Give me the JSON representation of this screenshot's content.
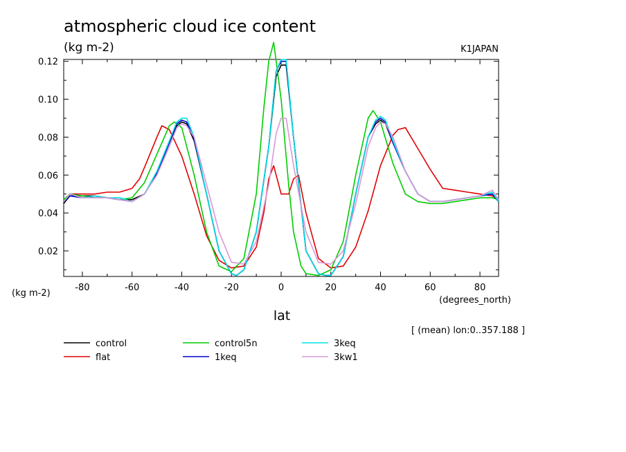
{
  "chart_data": {
    "type": "line",
    "title": "atmospheric cloud ice content",
    "subtitle": "(kg m-2)",
    "source_label": "K1JAPAN",
    "ylabel": "(kg m-2)",
    "xunits": "(degrees_north)",
    "xlabel": "lat",
    "note": "[ (mean) lon:0..357.188 ]",
    "xlim": [
      -87.5,
      87.5
    ],
    "ylim": [
      0.0065,
      0.121
    ],
    "xticks": [
      -80,
      -60,
      -40,
      -20,
      0,
      20,
      40,
      60,
      80
    ],
    "xtick_labels": [
      "-80",
      "-60",
      "-40",
      "-20",
      "0",
      "20",
      "40",
      "60",
      "80"
    ],
    "yticks": [
      0.02,
      0.04,
      0.06,
      0.08,
      0.1,
      0.12
    ],
    "ytick_labels": [
      "0.02",
      "0.04",
      "0.06",
      "0.08",
      "0.10",
      "0.12"
    ],
    "grid": false,
    "legend_position": "bottom",
    "series": [
      {
        "name": "control",
        "color": "#000000",
        "x": [
          -87.5,
          -85,
          -80,
          -75,
          -70,
          -65,
          -60,
          -55,
          -50,
          -45,
          -42,
          -40,
          -38,
          -35,
          -30,
          -25,
          -20,
          -18,
          -15,
          -10,
          -5,
          -2,
          0,
          2,
          5,
          10,
          15,
          18,
          20,
          25,
          30,
          35,
          38,
          40,
          42,
          45,
          50,
          55,
          60,
          65,
          70,
          75,
          80,
          85,
          87.5
        ],
        "y": [
          0.045,
          0.049,
          0.049,
          0.049,
          0.048,
          0.047,
          0.047,
          0.05,
          0.061,
          0.077,
          0.086,
          0.088,
          0.087,
          0.078,
          0.05,
          0.02,
          0.008,
          0.007,
          0.01,
          0.03,
          0.075,
          0.112,
          0.118,
          0.118,
          0.08,
          0.02,
          0.008,
          0.007,
          0.007,
          0.017,
          0.05,
          0.08,
          0.087,
          0.089,
          0.087,
          0.077,
          0.062,
          0.05,
          0.046,
          0.046,
          0.047,
          0.048,
          0.049,
          0.05,
          0.046
        ]
      },
      {
        "name": "flat",
        "color": "#e00000",
        "x": [
          -87.5,
          -85,
          -80,
          -75,
          -70,
          -65,
          -60,
          -57,
          -55,
          -50,
          -48,
          -45,
          -40,
          -35,
          -30,
          -25,
          -20,
          -15,
          -10,
          -7,
          -5,
          -3,
          0,
          3,
          5,
          7,
          10,
          15,
          20,
          25,
          30,
          35,
          40,
          45,
          47,
          50,
          55,
          60,
          65,
          70,
          75,
          80,
          85,
          87.5
        ],
        "y": [
          0.046,
          0.05,
          0.05,
          0.05,
          0.051,
          0.051,
          0.053,
          0.058,
          0.064,
          0.08,
          0.086,
          0.084,
          0.07,
          0.05,
          0.028,
          0.015,
          0.011,
          0.012,
          0.022,
          0.04,
          0.058,
          0.065,
          0.05,
          0.05,
          0.058,
          0.06,
          0.04,
          0.016,
          0.011,
          0.012,
          0.022,
          0.041,
          0.065,
          0.081,
          0.084,
          0.085,
          0.074,
          0.063,
          0.053,
          0.052,
          0.051,
          0.05,
          0.049,
          0.047
        ]
      },
      {
        "name": "control5n",
        "color": "#00cc00",
        "x": [
          -87.5,
          -85,
          -80,
          -75,
          -70,
          -65,
          -60,
          -55,
          -50,
          -45,
          -43,
          -40,
          -35,
          -30,
          -25,
          -20,
          -15,
          -10,
          -7,
          -5,
          -3,
          0,
          3,
          5,
          8,
          10,
          15,
          20,
          25,
          30,
          35,
          37,
          40,
          45,
          50,
          55,
          60,
          65,
          70,
          75,
          80,
          85,
          87.5
        ],
        "y": [
          0.047,
          0.05,
          0.049,
          0.048,
          0.048,
          0.047,
          0.048,
          0.056,
          0.071,
          0.086,
          0.088,
          0.085,
          0.06,
          0.03,
          0.012,
          0.009,
          0.016,
          0.05,
          0.095,
          0.12,
          0.13,
          0.1,
          0.055,
          0.03,
          0.012,
          0.008,
          0.007,
          0.01,
          0.025,
          0.06,
          0.09,
          0.094,
          0.088,
          0.066,
          0.05,
          0.046,
          0.045,
          0.045,
          0.046,
          0.047,
          0.048,
          0.048,
          0.047
        ]
      },
      {
        "name": "1keq",
        "color": "#0000cc",
        "x": [
          -87.5,
          -85,
          -80,
          -75,
          -70,
          -65,
          -60,
          -55,
          -50,
          -45,
          -42,
          -40,
          -38,
          -35,
          -30,
          -25,
          -20,
          -18,
          -15,
          -10,
          -5,
          -2,
          0,
          2,
          5,
          10,
          15,
          18,
          20,
          25,
          30,
          35,
          38,
          40,
          42,
          45,
          50,
          55,
          60,
          65,
          70,
          75,
          80,
          85,
          87.5
        ],
        "y": [
          0.046,
          0.049,
          0.048,
          0.048,
          0.048,
          0.047,
          0.046,
          0.05,
          0.061,
          0.077,
          0.087,
          0.089,
          0.088,
          0.079,
          0.05,
          0.02,
          0.008,
          0.007,
          0.01,
          0.03,
          0.075,
          0.115,
          0.12,
          0.12,
          0.08,
          0.02,
          0.008,
          0.007,
          0.007,
          0.017,
          0.05,
          0.08,
          0.088,
          0.09,
          0.088,
          0.077,
          0.062,
          0.05,
          0.046,
          0.046,
          0.047,
          0.048,
          0.049,
          0.05,
          0.046
        ]
      },
      {
        "name": "3keq",
        "color": "#00e0e0",
        "x": [
          -87.5,
          -85,
          -80,
          -75,
          -70,
          -65,
          -60,
          -55,
          -50,
          -45,
          -42,
          -40,
          -38,
          -35,
          -30,
          -25,
          -20,
          -18,
          -15,
          -10,
          -5,
          -2,
          0,
          2,
          5,
          10,
          15,
          18,
          20,
          25,
          30,
          35,
          38,
          40,
          42,
          45,
          50,
          55,
          60,
          65,
          70,
          75,
          80,
          85,
          87.5
        ],
        "y": [
          0.046,
          0.05,
          0.048,
          0.049,
          0.048,
          0.048,
          0.046,
          0.05,
          0.062,
          0.078,
          0.088,
          0.09,
          0.09,
          0.08,
          0.05,
          0.02,
          0.008,
          0.007,
          0.01,
          0.03,
          0.075,
          0.115,
          0.121,
          0.121,
          0.08,
          0.02,
          0.008,
          0.007,
          0.007,
          0.017,
          0.05,
          0.08,
          0.089,
          0.091,
          0.089,
          0.078,
          0.062,
          0.05,
          0.046,
          0.046,
          0.047,
          0.048,
          0.049,
          0.051,
          0.046
        ]
      },
      {
        "name": "3kw1",
        "color": "#d898d8",
        "x": [
          -87.5,
          -85,
          -80,
          -75,
          -70,
          -65,
          -60,
          -55,
          -50,
          -45,
          -42,
          -40,
          -38,
          -35,
          -30,
          -25,
          -20,
          -15,
          -10,
          -5,
          -2,
          0,
          2,
          5,
          10,
          15,
          20,
          25,
          30,
          35,
          38,
          40,
          42,
          45,
          50,
          55,
          60,
          65,
          70,
          75,
          80,
          85,
          87.5
        ],
        "y": [
          0.046,
          0.05,
          0.048,
          0.048,
          0.048,
          0.047,
          0.046,
          0.05,
          0.06,
          0.075,
          0.085,
          0.087,
          0.086,
          0.08,
          0.055,
          0.03,
          0.014,
          0.013,
          0.025,
          0.055,
          0.082,
          0.09,
          0.09,
          0.065,
          0.03,
          0.014,
          0.013,
          0.02,
          0.045,
          0.075,
          0.085,
          0.088,
          0.087,
          0.08,
          0.062,
          0.05,
          0.046,
          0.046,
          0.047,
          0.048,
          0.049,
          0.052,
          0.047
        ]
      }
    ]
  }
}
